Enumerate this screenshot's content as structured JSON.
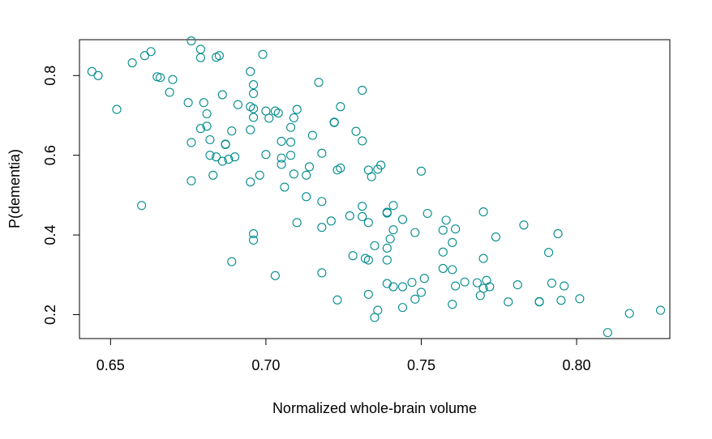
{
  "chart_data": {
    "type": "scatter",
    "title": "",
    "xlabel": "Normalized whole-brain volume",
    "ylabel": "P(dementia)",
    "xlim": [
      0.64,
      0.83
    ],
    "ylim": [
      0.14,
      0.89
    ],
    "xticks": [
      0.65,
      0.7,
      0.75,
      0.8
    ],
    "xtick_labels": [
      "0.65",
      "0.70",
      "0.75",
      "0.80"
    ],
    "yticks": [
      0.2,
      0.4,
      0.6,
      0.8
    ],
    "ytick_labels": [
      "0.2",
      "0.4",
      "0.6",
      "0.8"
    ],
    "grid": false,
    "marker": "open-circle",
    "point_color": "#008B8B",
    "points": [
      [
        0.644,
        0.81
      ],
      [
        0.646,
        0.8
      ],
      [
        0.652,
        0.715
      ],
      [
        0.657,
        0.832
      ],
      [
        0.66,
        0.474
      ],
      [
        0.661,
        0.85
      ],
      [
        0.663,
        0.86
      ],
      [
        0.665,
        0.797
      ],
      [
        0.666,
        0.795
      ],
      [
        0.669,
        0.758
      ],
      [
        0.67,
        0.79
      ],
      [
        0.675,
        0.732
      ],
      [
        0.676,
        0.632
      ],
      [
        0.676,
        0.536
      ],
      [
        0.676,
        0.887
      ],
      [
        0.679,
        0.866
      ],
      [
        0.679,
        0.845
      ],
      [
        0.679,
        0.667
      ],
      [
        0.68,
        0.732
      ],
      [
        0.681,
        0.704
      ],
      [
        0.681,
        0.673
      ],
      [
        0.682,
        0.639
      ],
      [
        0.682,
        0.6
      ],
      [
        0.683,
        0.55
      ],
      [
        0.684,
        0.846
      ],
      [
        0.684,
        0.596
      ],
      [
        0.685,
        0.85
      ],
      [
        0.686,
        0.752
      ],
      [
        0.686,
        0.585
      ],
      [
        0.687,
        0.628
      ],
      [
        0.687,
        0.627
      ],
      [
        0.688,
        0.59
      ],
      [
        0.689,
        0.661
      ],
      [
        0.689,
        0.333
      ],
      [
        0.69,
        0.596
      ],
      [
        0.691,
        0.727
      ],
      [
        0.695,
        0.81
      ],
      [
        0.695,
        0.722
      ],
      [
        0.695,
        0.664
      ],
      [
        0.695,
        0.533
      ],
      [
        0.696,
        0.777
      ],
      [
        0.696,
        0.755
      ],
      [
        0.696,
        0.717
      ],
      [
        0.696,
        0.695
      ],
      [
        0.696,
        0.403
      ],
      [
        0.696,
        0.387
      ],
      [
        0.698,
        0.55
      ],
      [
        0.699,
        0.853
      ],
      [
        0.7,
        0.711
      ],
      [
        0.7,
        0.602
      ],
      [
        0.701,
        0.693
      ],
      [
        0.703,
        0.711
      ],
      [
        0.703,
        0.298
      ],
      [
        0.704,
        0.706
      ],
      [
        0.705,
        0.635
      ],
      [
        0.705,
        0.593
      ],
      [
        0.705,
        0.577
      ],
      [
        0.706,
        0.52
      ],
      [
        0.708,
        0.67
      ],
      [
        0.708,
        0.633
      ],
      [
        0.708,
        0.6
      ],
      [
        0.709,
        0.694
      ],
      [
        0.709,
        0.553
      ],
      [
        0.71,
        0.715
      ],
      [
        0.71,
        0.431
      ],
      [
        0.713,
        0.55
      ],
      [
        0.713,
        0.496
      ],
      [
        0.714,
        0.571
      ],
      [
        0.715,
        0.65
      ],
      [
        0.717,
        0.783
      ],
      [
        0.718,
        0.605
      ],
      [
        0.718,
        0.484
      ],
      [
        0.718,
        0.419
      ],
      [
        0.718,
        0.305
      ],
      [
        0.721,
        0.435
      ],
      [
        0.722,
        0.683
      ],
      [
        0.722,
        0.682
      ],
      [
        0.723,
        0.563
      ],
      [
        0.723,
        0.237
      ],
      [
        0.724,
        0.722
      ],
      [
        0.724,
        0.568
      ],
      [
        0.727,
        0.448
      ],
      [
        0.728,
        0.348
      ],
      [
        0.729,
        0.66
      ],
      [
        0.731,
        0.763
      ],
      [
        0.731,
        0.636
      ],
      [
        0.731,
        0.472
      ],
      [
        0.731,
        0.446
      ],
      [
        0.732,
        0.341
      ],
      [
        0.733,
        0.563
      ],
      [
        0.733,
        0.431
      ],
      [
        0.733,
        0.337
      ],
      [
        0.733,
        0.251
      ],
      [
        0.734,
        0.546
      ],
      [
        0.735,
        0.373
      ],
      [
        0.735,
        0.193
      ],
      [
        0.736,
        0.565
      ],
      [
        0.736,
        0.211
      ],
      [
        0.737,
        0.575
      ],
      [
        0.739,
        0.457
      ],
      [
        0.739,
        0.455
      ],
      [
        0.739,
        0.367
      ],
      [
        0.739,
        0.337
      ],
      [
        0.739,
        0.278
      ],
      [
        0.74,
        0.39
      ],
      [
        0.741,
        0.474
      ],
      [
        0.741,
        0.413
      ],
      [
        0.741,
        0.27
      ],
      [
        0.744,
        0.439
      ],
      [
        0.744,
        0.27
      ],
      [
        0.744,
        0.218
      ],
      [
        0.747,
        0.281
      ],
      [
        0.748,
        0.406
      ],
      [
        0.748,
        0.239
      ],
      [
        0.75,
        0.56
      ],
      [
        0.75,
        0.256
      ],
      [
        0.751,
        0.291
      ],
      [
        0.752,
        0.454
      ],
      [
        0.757,
        0.412
      ],
      [
        0.757,
        0.357
      ],
      [
        0.757,
        0.316
      ],
      [
        0.758,
        0.437
      ],
      [
        0.76,
        0.381
      ],
      [
        0.76,
        0.313
      ],
      [
        0.76,
        0.226
      ],
      [
        0.761,
        0.415
      ],
      [
        0.761,
        0.272
      ],
      [
        0.764,
        0.282
      ],
      [
        0.768,
        0.28
      ],
      [
        0.769,
        0.248
      ],
      [
        0.77,
        0.458
      ],
      [
        0.77,
        0.341
      ],
      [
        0.77,
        0.266
      ],
      [
        0.771,
        0.286
      ],
      [
        0.772,
        0.27
      ],
      [
        0.774,
        0.395
      ],
      [
        0.778,
        0.232
      ],
      [
        0.781,
        0.275
      ],
      [
        0.783,
        0.425
      ],
      [
        0.788,
        0.233
      ],
      [
        0.788,
        0.232
      ],
      [
        0.791,
        0.356
      ],
      [
        0.792,
        0.279
      ],
      [
        0.794,
        0.403
      ],
      [
        0.795,
        0.236
      ],
      [
        0.796,
        0.272
      ],
      [
        0.801,
        0.24
      ],
      [
        0.81,
        0.155
      ],
      [
        0.817,
        0.203
      ],
      [
        0.827,
        0.211
      ]
    ]
  }
}
